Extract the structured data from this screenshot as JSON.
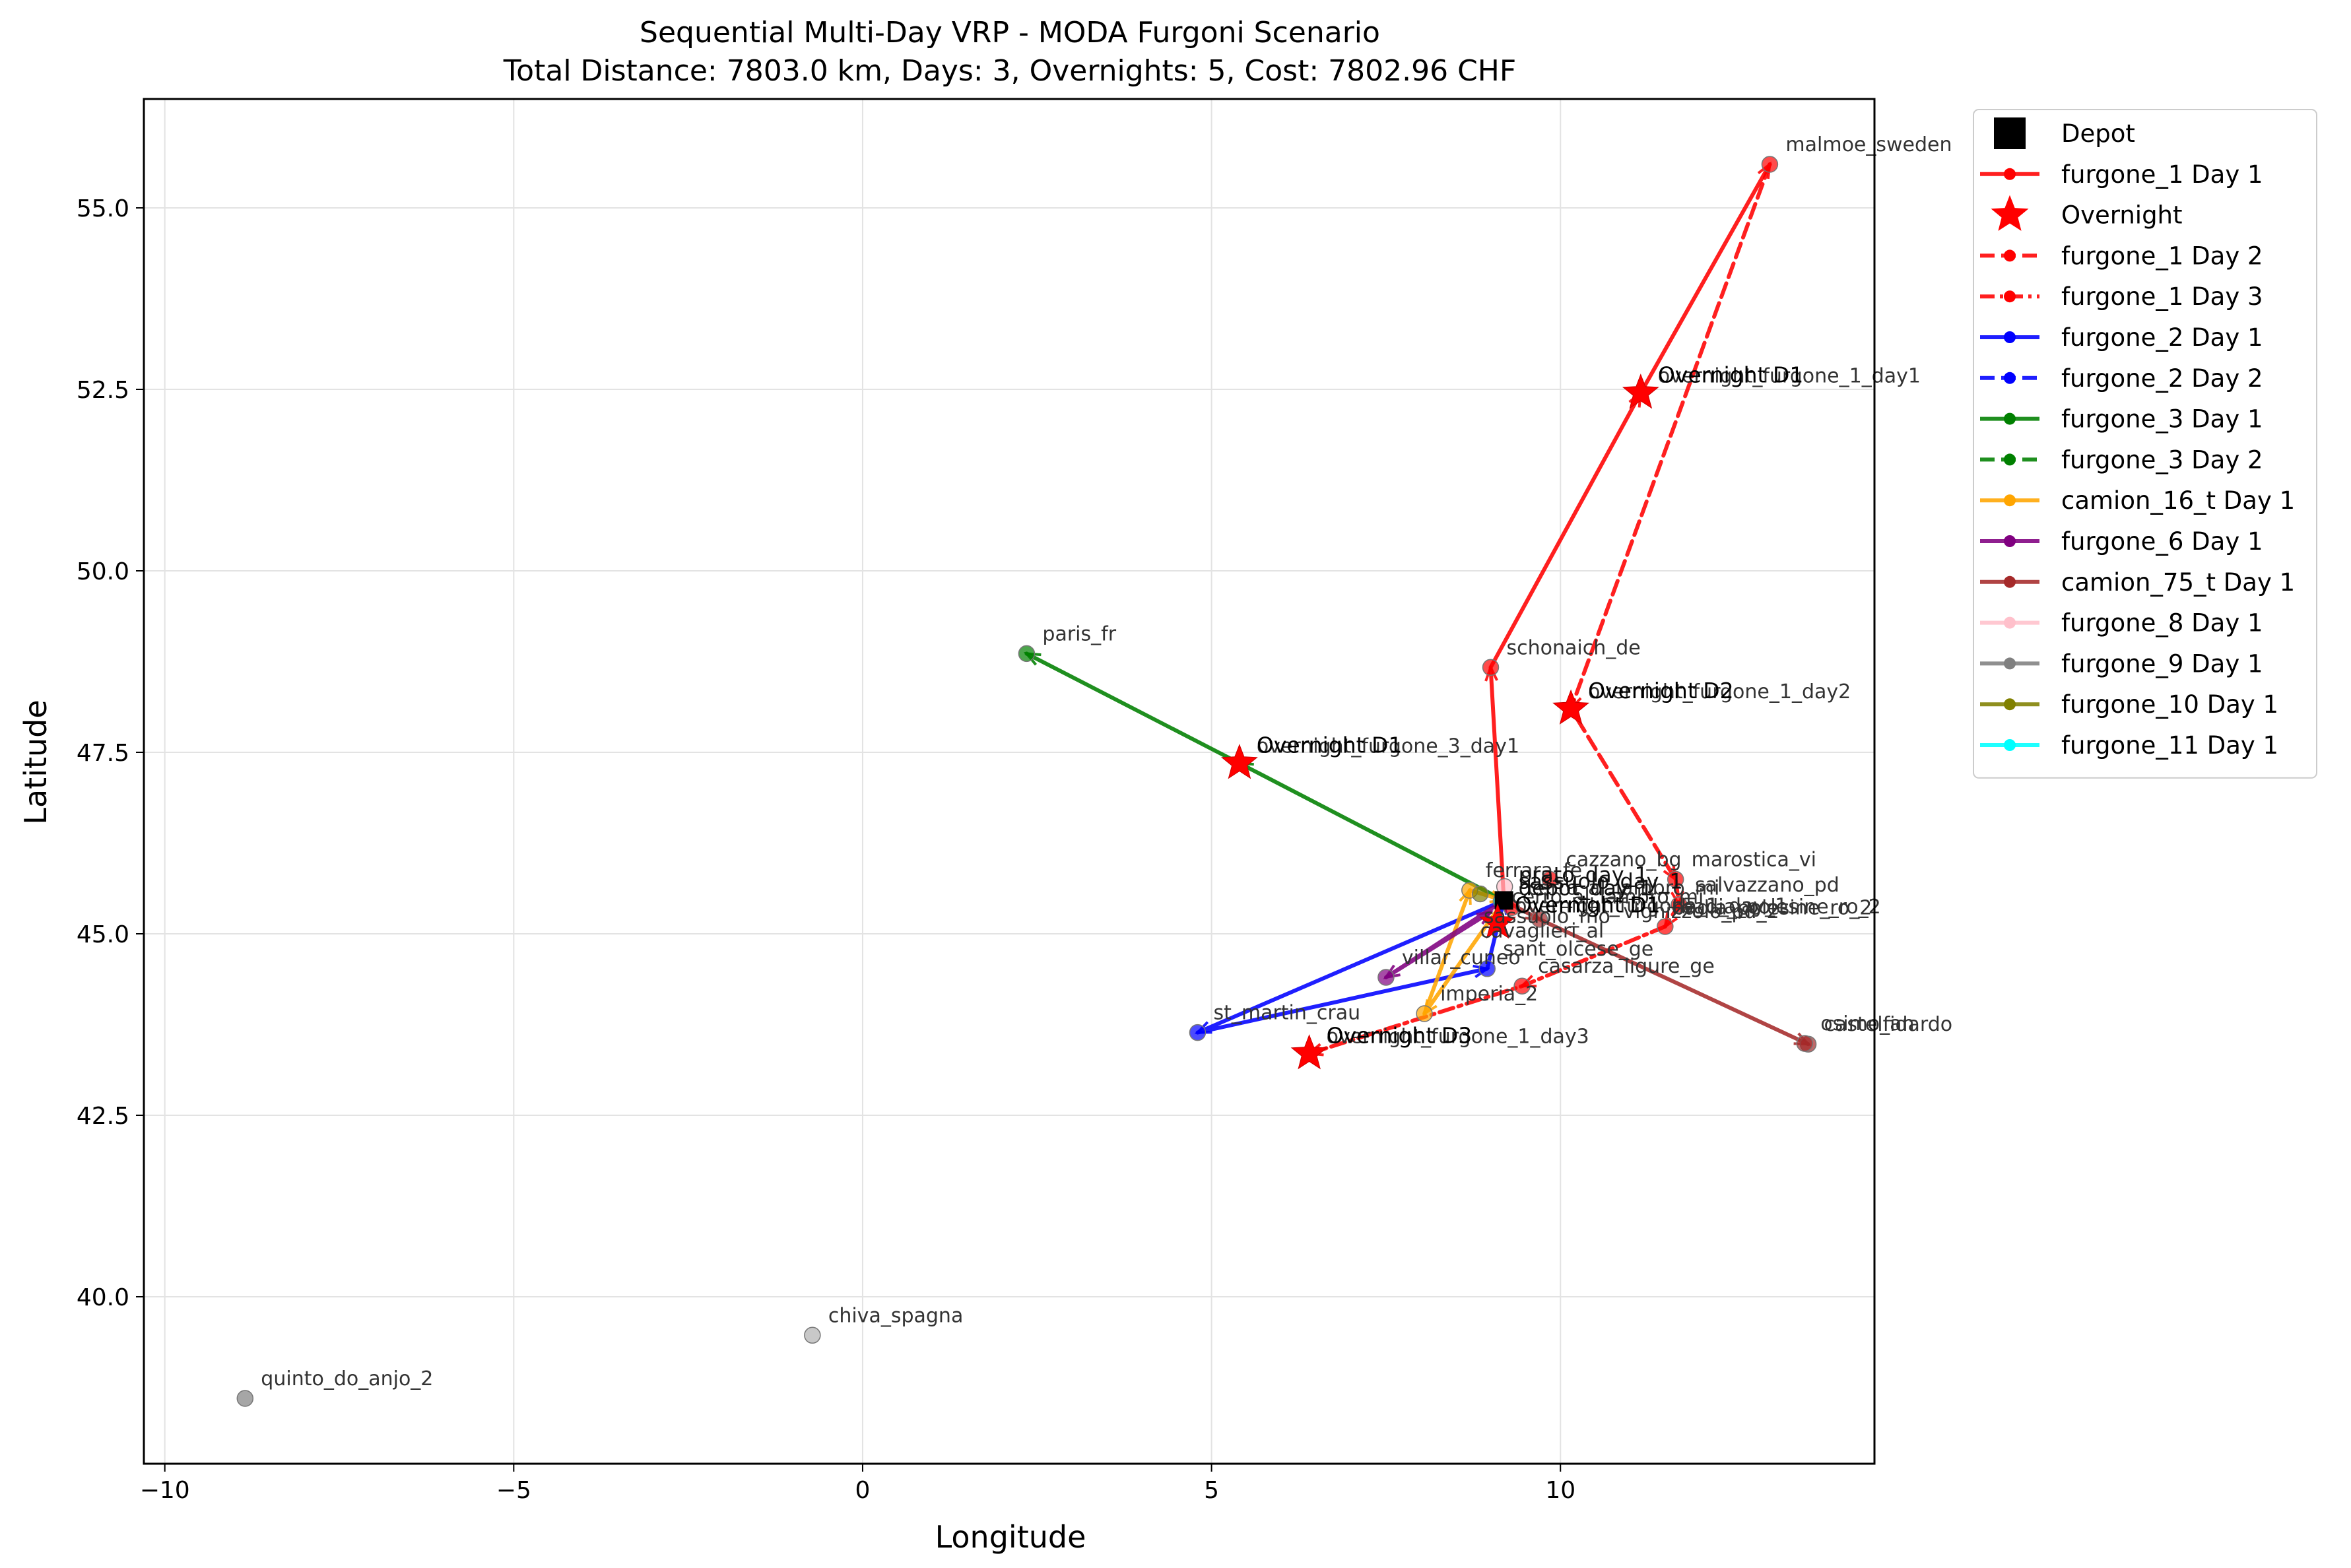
{
  "chart_data": {
    "type": "line",
    "title": "Sequential Multi-Day VRP - MODA Furgoni Scenario",
    "subtitle": "Total Distance: 7803.0 km, Days: 3, Overnights: 5, Cost: 7802.96 CHF",
    "xlabel": "Longitude",
    "ylabel": "Latitude",
    "xlim": [
      -10.3,
      14.5
    ],
    "ylim": [
      37.7,
      56.5
    ],
    "xticks": [
      -10,
      -5,
      0,
      5,
      10
    ],
    "yticks": [
      40.0,
      42.5,
      45.0,
      47.5,
      50.0,
      52.5,
      55.0
    ],
    "xtick_labels": [
      "−10",
      "−5",
      "0",
      "5",
      "10"
    ],
    "ytick_labels": [
      "40.0",
      "42.5",
      "45.0",
      "47.5",
      "50.0",
      "52.5",
      "55.0"
    ],
    "grid": true,
    "legend_position": "outside-upper-right",
    "legend": [
      {
        "label": "Depot",
        "kind": "square",
        "color": "#000000"
      },
      {
        "label": "furgone_1 Day 1",
        "kind": "line",
        "color": "#ff0000",
        "dash": "solid"
      },
      {
        "label": "Overnight",
        "kind": "star",
        "color": "#ff0000"
      },
      {
        "label": "furgone_1 Day 2",
        "kind": "line",
        "color": "#ff0000",
        "dash": "dashed"
      },
      {
        "label": "furgone_1 Day 3",
        "kind": "line",
        "color": "#ff0000",
        "dash": "dashdot"
      },
      {
        "label": "furgone_2 Day 1",
        "kind": "line",
        "color": "#0000ff",
        "dash": "solid"
      },
      {
        "label": "furgone_2 Day 2",
        "kind": "line",
        "color": "#0000ff",
        "dash": "dashed"
      },
      {
        "label": "furgone_3 Day 1",
        "kind": "line",
        "color": "#008000",
        "dash": "solid"
      },
      {
        "label": "furgone_3 Day 2",
        "kind": "line",
        "color": "#008000",
        "dash": "dashed"
      },
      {
        "label": "camion_16_t Day 1",
        "kind": "line",
        "color": "#ffa500",
        "dash": "solid"
      },
      {
        "label": "furgone_6 Day 1",
        "kind": "line",
        "color": "#800080",
        "dash": "solid"
      },
      {
        "label": "camion_75_t Day 1",
        "kind": "line",
        "color": "#a52a2a",
        "dash": "solid"
      },
      {
        "label": "furgone_8 Day 1",
        "kind": "line",
        "color": "#ffc0cb",
        "dash": "solid"
      },
      {
        "label": "furgone_9 Day 1",
        "kind": "line",
        "color": "#808080",
        "dash": "solid"
      },
      {
        "label": "furgone_10 Day 1",
        "kind": "line",
        "color": "#808000",
        "dash": "solid"
      },
      {
        "label": "furgone_11 Day 1",
        "kind": "line",
        "color": "#00ffff",
        "dash": "solid"
      }
    ],
    "points": [
      {
        "label": "malmoe_sweden",
        "x": 13.0,
        "y": 55.6,
        "color": "#ff0000"
      },
      {
        "label": "schonaich_de",
        "x": 9.0,
        "y": 48.67,
        "color": "#ff0000"
      },
      {
        "label": "paris_fr",
        "x": 2.35,
        "y": 48.86,
        "color": "#008000"
      },
      {
        "label": "st_martin_crau",
        "x": 4.8,
        "y": 43.64,
        "color": "#0000ff"
      },
      {
        "label": "villar_cuneo",
        "x": 7.5,
        "y": 44.4,
        "color": "#800080"
      },
      {
        "label": "imperia_2",
        "x": 8.05,
        "y": 43.9,
        "color": "#ffa500"
      },
      {
        "label": "sant_olcese_ge",
        "x": 8.95,
        "y": 44.52,
        "color": "#0000ff"
      },
      {
        "label": "casarza_ligure_ge",
        "x": 9.45,
        "y": 44.28,
        "color": "#ff0000"
      },
      {
        "label": "castelfidardo",
        "x": 13.55,
        "y": 43.48,
        "color": "#a52a2a"
      },
      {
        "label": "osimo_an",
        "x": 13.5,
        "y": 43.49,
        "color": "#a52a2a"
      },
      {
        "label": "marostica_vi",
        "x": 11.65,
        "y": 45.75,
        "color": "#ff0000"
      },
      {
        "label": "cazzano_bg",
        "x": 9.85,
        "y": 45.75,
        "color": "#ff0000"
      },
      {
        "label": "salvazzano_pd",
        "x": 11.7,
        "y": 45.4,
        "color": "#ff0000"
      },
      {
        "label": "badia_polesine_ro_2",
        "x": 11.5,
        "y": 45.1,
        "color": "#ff0000"
      },
      {
        "label": "quinto_do_anjo_2",
        "x": -8.85,
        "y": 38.6,
        "color": "#808080"
      },
      {
        "label": "chiva_spagna",
        "x": -0.72,
        "y": 39.47,
        "color": "#b0b0b0"
      },
      {
        "label": "ferrara_fe",
        "x": 8.7,
        "y": 45.6,
        "color": "#ffa500"
      },
      {
        "label": "cerro_al_lambro_mi",
        "x": 9.3,
        "y": 45.36,
        "color": "#ff0000"
      },
      {
        "label": "",
        "x": 9.2,
        "y": 45.65,
        "color": "#ffc0cb"
      },
      {
        "label": "",
        "x": 9.7,
        "y": 45.2,
        "color": "#a52a2a"
      },
      {
        "label": "",
        "x": 9.15,
        "y": 45.45,
        "color": "#00ffff"
      },
      {
        "label": "",
        "x": 8.85,
        "y": 45.55,
        "color": "#808000"
      }
    ],
    "overnights": [
      {
        "label": "Overnight D1",
        "extra": "overnight_furgone_1_day1",
        "x": 11.15,
        "y": 52.45
      },
      {
        "label": "Overnight D2",
        "extra": "overnight_furgone_1_day2",
        "x": 10.15,
        "y": 48.1
      },
      {
        "label": "Overnight D1",
        "extra": "overnight_furgone_3_day1",
        "x": 5.4,
        "y": 47.35
      },
      {
        "label": "Overnight D3",
        "extra": "overnight_furgone_1_day3",
        "x": 6.4,
        "y": 43.35
      },
      {
        "label": "Overnight D1",
        "extra": "overnight_furgone_1_day_1",
        "x": 9.1,
        "y": 45.15
      }
    ],
    "depot": {
      "x": 9.19,
      "y": 45.46,
      "labels": [
        "prato_day_1",
        "sassuolo_day_1",
        "depot_day_1"
      ]
    },
    "cluster_labels": [
      {
        "text": "cerro_al_lambro_mi",
        "x": 9.3,
        "y": 45.42
      },
      {
        "text": "badia_polesine_ro_2",
        "x": 11.6,
        "y": 45.27
      },
      {
        "text": "sassuolo_mo",
        "x": 8.9,
        "y": 45.15
      },
      {
        "text": "cavaglieri_al",
        "x": 8.85,
        "y": 44.95
      },
      {
        "text": "vighizzolo_pd_2",
        "x": 10.9,
        "y": 45.22
      }
    ],
    "routes": [
      {
        "name": "furgone_1 Day 1",
        "color": "#ff0000",
        "dash": "solid",
        "points": [
          [
            9.19,
            45.46
          ],
          [
            9.0,
            48.67
          ],
          [
            11.15,
            52.45
          ],
          [
            13.0,
            55.6
          ]
        ]
      },
      {
        "name": "furgone_1 Day 2",
        "color": "#ff0000",
        "dash": "dashed",
        "points": [
          [
            13.0,
            55.6
          ],
          [
            10.15,
            48.1
          ],
          [
            11.65,
            45.75
          ],
          [
            11.7,
            45.4
          ],
          [
            11.5,
            45.1
          ]
        ]
      },
      {
        "name": "furgone_1 Day 3",
        "color": "#ff0000",
        "dash": "dashdot",
        "points": [
          [
            11.5,
            45.1
          ],
          [
            9.45,
            44.28
          ],
          [
            6.4,
            43.35
          ]
        ]
      },
      {
        "name": "furgone_2 Day 1",
        "color": "#0000ff",
        "dash": "solid",
        "points": [
          [
            9.19,
            45.46
          ],
          [
            4.8,
            43.64
          ],
          [
            8.95,
            44.52
          ],
          [
            9.19,
            45.46
          ]
        ]
      },
      {
        "name": "furgone_3 Day 1",
        "color": "#008000",
        "dash": "solid",
        "points": [
          [
            9.19,
            45.46
          ],
          [
            5.4,
            47.35
          ],
          [
            2.35,
            48.86
          ]
        ]
      },
      {
        "name": "camion_16_t Day 1",
        "color": "#ffa500",
        "dash": "solid",
        "points": [
          [
            9.19,
            45.46
          ],
          [
            8.05,
            43.9
          ],
          [
            8.7,
            45.6
          ],
          [
            9.19,
            45.46
          ]
        ]
      },
      {
        "name": "furgone_6 Day 1",
        "color": "#800080",
        "dash": "solid",
        "points": [
          [
            9.19,
            45.46
          ],
          [
            7.5,
            44.4
          ],
          [
            9.0,
            45.3
          ]
        ]
      },
      {
        "name": "camion_75_t Day 1",
        "color": "#a52a2a",
        "dash": "solid",
        "points": [
          [
            9.19,
            45.46
          ],
          [
            9.7,
            45.2
          ],
          [
            13.55,
            43.48
          ]
        ]
      }
    ]
  }
}
